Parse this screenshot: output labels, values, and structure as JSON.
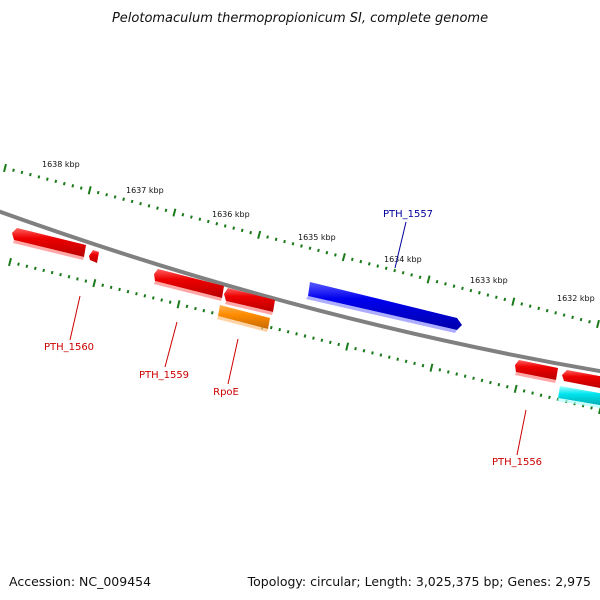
{
  "title": "Pelotomaculum thermopropionicum SI, complete genome",
  "footer": {
    "accession": "Accession: NC_009454",
    "summary": "Topology: circular; Length: 3,025,375 bp; Genes: 2,975"
  },
  "colors": {
    "backbone": "#808080",
    "tick": "#1a7a1a",
    "forward_gene": "#0000ee",
    "reverse_gene": "#ee0000",
    "rpoe_gene": "#ff8c00",
    "cyan_gene": "#00e5ee",
    "forward_label": "#000099",
    "reverse_label": "#cc0000"
  },
  "scale_labels": [
    "1638 kbp",
    "1637 kbp",
    "1636 kbp",
    "1635 kbp",
    "1634 kbp",
    "1633 kbp",
    "1632 kbp"
  ],
  "genes": [
    {
      "id": "PTH_1557",
      "label": "PTH_1557",
      "strand": "forward"
    },
    {
      "id": "PTH_1560",
      "label": "PTH_1560",
      "strand": "reverse"
    },
    {
      "id": "PTH_1559",
      "label": "PTH_1559",
      "strand": "reverse"
    },
    {
      "id": "RpoE",
      "label": "RpoE",
      "strand": "reverse"
    },
    {
      "id": "PTH_1556",
      "label": "PTH_1556",
      "strand": "reverse"
    }
  ]
}
